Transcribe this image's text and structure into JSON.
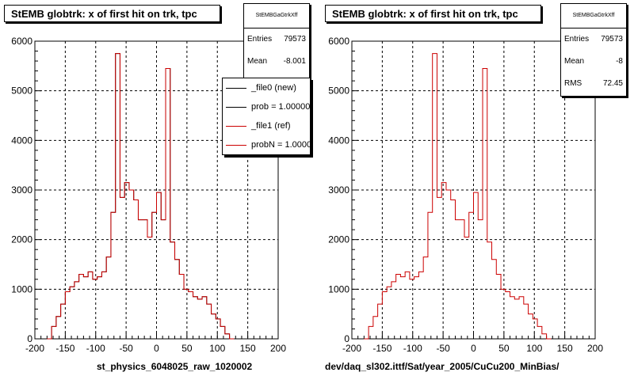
{
  "chart_data": [
    {
      "type": "histogram",
      "title": "StEMB globtrk: x of first hit on trk, tpc",
      "xlabel": "st_physics_6048025_raw_1020002",
      "ylabel": "",
      "xlim": [
        -200,
        200
      ],
      "ylim": [
        0,
        6000
      ],
      "xticks": [
        -200,
        -150,
        -100,
        -50,
        0,
        50,
        100,
        150,
        200
      ],
      "yticks": [
        0,
        1000,
        2000,
        3000,
        4000,
        5000,
        6000
      ],
      "grid": true,
      "bin_edges_start": -180,
      "bin_width": 7.5,
      "series": [
        {
          "name": "_file0 (new)",
          "color": "#000000",
          "values": [
            0,
            250,
            450,
            700,
            950,
            1050,
            1150,
            1300,
            1250,
            1350,
            1200,
            1250,
            1350,
            1650,
            2550,
            5750,
            2850,
            3150,
            3000,
            2800,
            2400,
            2400,
            2050,
            2550,
            2950,
            2400,
            5450,
            1950,
            1600,
            1300,
            1000,
            950,
            850,
            800,
            850,
            700,
            500,
            400,
            250,
            100,
            0
          ]
        },
        {
          "name": "_file1 (ref)",
          "color": "#cc0000",
          "values": [
            0,
            250,
            450,
            700,
            950,
            1050,
            1150,
            1300,
            1250,
            1350,
            1200,
            1250,
            1350,
            1650,
            2550,
            5750,
            2850,
            3150,
            3000,
            2800,
            2400,
            2400,
            2050,
            2550,
            2950,
            2400,
            5450,
            1950,
            1600,
            1300,
            1000,
            950,
            850,
            800,
            850,
            700,
            500,
            400,
            250,
            100,
            0
          ]
        }
      ],
      "stats": {
        "name": "StEMBGaGtrkXff",
        "entries_label": "Entries",
        "entries": "79573",
        "mean_label": "Mean",
        "mean": "-8.001"
      },
      "legend": [
        {
          "label": "_file0 (new)",
          "color": "#000000"
        },
        {
          "label": "prob = 1.000000",
          "color": "#000000"
        },
        {
          "label": "_file1 (ref)",
          "color": "#cc0000"
        },
        {
          "label": "probN = 1.000000",
          "color": "#cc0000"
        }
      ]
    },
    {
      "type": "histogram",
      "title": "StEMB globtrk: x of first hit on trk, tpc",
      "xlabel": "dev/daq_sl302.ittf/Sat/year_2005/CuCu200_MinBias/",
      "ylabel": "",
      "xlim": [
        -200,
        200
      ],
      "ylim": [
        0,
        6000
      ],
      "xticks": [
        -200,
        -150,
        -100,
        -50,
        0,
        50,
        100,
        150,
        200
      ],
      "yticks": [
        0,
        1000,
        2000,
        3000,
        4000,
        5000,
        6000
      ],
      "grid": true,
      "bin_edges_start": -180,
      "bin_width": 7.5,
      "series": [
        {
          "name": "",
          "color": "#cc0000",
          "values": [
            0,
            250,
            450,
            700,
            950,
            1050,
            1150,
            1300,
            1250,
            1350,
            1200,
            1250,
            1350,
            1650,
            2550,
            5750,
            2850,
            3150,
            3000,
            2800,
            2400,
            2400,
            2050,
            2550,
            2950,
            2400,
            5450,
            1950,
            1600,
            1300,
            1000,
            950,
            850,
            800,
            850,
            700,
            500,
            400,
            250,
            100,
            0
          ]
        }
      ],
      "stats": {
        "name": "StEMBGaGtrkXff",
        "entries_label": "Entries",
        "entries": "79573",
        "mean_label": "Mean",
        "mean": "-8",
        "rms_label": "RMS",
        "rms": "72.45"
      }
    }
  ]
}
